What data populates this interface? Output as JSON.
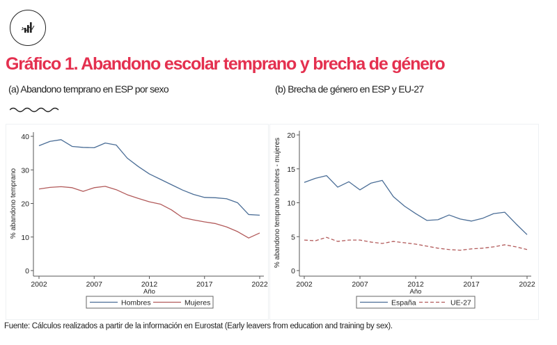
{
  "header": {
    "logo_icon": "bar-chart-trend-icon",
    "title": "Gráfico 1. Abandono escolar temprano y brecha de género",
    "subtitle_a": "(a) Abandono temprano en ESP por sexo",
    "subtitle_b": "(b) Brecha de género en ESP y EU-27"
  },
  "footer": {
    "source": "Fuente:  Cálculos realizados a partir de la información en Eurostat (Early leavers from education and training by sex)."
  },
  "colors": {
    "title": "#e4304f",
    "series_blue": "#4a6d96",
    "series_red": "#b25a5a"
  },
  "chart_data": [
    {
      "type": "line",
      "title": "(a) Abandono temprano en ESP por sexo",
      "xlabel": "Año",
      "ylabel": "% abandono temprano",
      "xlim": [
        2002,
        2022
      ],
      "ylim": [
        0,
        40
      ],
      "xticks": [
        "2002",
        "2007",
        "2012",
        "2017",
        "2022"
      ],
      "yticks": [
        "0",
        "10",
        "20",
        "30",
        "40"
      ],
      "grid": false,
      "legend_position": "bottom",
      "x": [
        2002,
        2003,
        2004,
        2005,
        2006,
        2007,
        2008,
        2009,
        2010,
        2011,
        2012,
        2013,
        2014,
        2015,
        2016,
        2017,
        2018,
        2019,
        2020,
        2021,
        2022
      ],
      "series": [
        {
          "name": "Hombres",
          "style": "solid",
          "color": "#4a6d96",
          "values": [
            37.2,
            38.5,
            39.0,
            37.0,
            36.7,
            36.6,
            38.0,
            37.4,
            33.5,
            31.0,
            28.8,
            27.2,
            25.6,
            24.0,
            22.7,
            21.8,
            21.7,
            21.4,
            20.2,
            16.7,
            16.5
          ]
        },
        {
          "name": "Mujeres",
          "style": "solid",
          "color": "#b25a5a",
          "values": [
            24.3,
            24.8,
            25.0,
            24.7,
            23.6,
            24.7,
            25.1,
            24.1,
            22.6,
            21.5,
            20.5,
            19.8,
            18.1,
            15.8,
            15.1,
            14.5,
            14.0,
            13.0,
            11.6,
            9.7,
            11.2
          ]
        }
      ]
    },
    {
      "type": "line",
      "title": "(b) Brecha de género en ESP y EU-27",
      "xlabel": "Año",
      "ylabel": "% abandono temprano hombres - mujeres",
      "xlim": [
        2002,
        2022
      ],
      "ylim": [
        0,
        20
      ],
      "xticks": [
        "2002",
        "2007",
        "2012",
        "2017",
        "2022"
      ],
      "yticks": [
        "0",
        "5",
        "10",
        "15",
        "20"
      ],
      "grid": false,
      "legend_position": "bottom",
      "x": [
        2002,
        2003,
        2004,
        2005,
        2006,
        2007,
        2008,
        2009,
        2010,
        2011,
        2012,
        2013,
        2014,
        2015,
        2016,
        2017,
        2018,
        2019,
        2020,
        2021,
        2022
      ],
      "series": [
        {
          "name": "España",
          "style": "solid",
          "color": "#4a6d96",
          "values": [
            13.0,
            13.6,
            14.0,
            12.3,
            13.1,
            11.9,
            12.9,
            13.3,
            10.9,
            9.5,
            8.4,
            7.4,
            7.5,
            8.2,
            7.6,
            7.3,
            7.7,
            8.4,
            8.6,
            6.9,
            5.3
          ]
        },
        {
          "name": "UE-27",
          "style": "dashed",
          "color": "#b25a5a",
          "values": [
            4.5,
            4.4,
            4.9,
            4.3,
            4.5,
            4.5,
            4.2,
            4.0,
            4.3,
            4.1,
            3.9,
            3.6,
            3.3,
            3.1,
            3.0,
            3.2,
            3.3,
            3.5,
            3.8,
            3.5,
            3.1
          ]
        }
      ]
    }
  ]
}
